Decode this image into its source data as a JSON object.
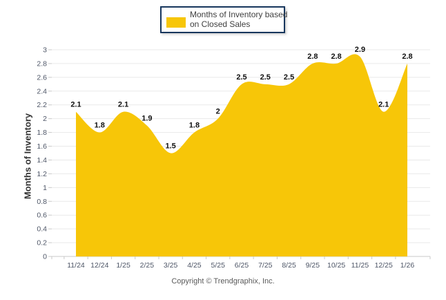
{
  "legend": {
    "lines": [
      "Months of Inventory based",
      "on Closed Sales"
    ],
    "swatch_color": "#F7C608",
    "border_color": "#17365D"
  },
  "y_axis": {
    "title": "Months of Inventory"
  },
  "footer": {
    "copyright": "Copyright © Trendgraphix, Inc."
  },
  "chart_data": {
    "type": "area",
    "title": "",
    "xlabel": "",
    "ylabel": "Months of Inventory",
    "categories": [
      "11/24",
      "12/24",
      "1/25",
      "2/25",
      "3/25",
      "4/25",
      "5/25",
      "6/25",
      "7/25",
      "8/25",
      "9/25",
      "10/25",
      "11/25",
      "12/25",
      "1/26"
    ],
    "series": [
      {
        "name": "Months of Inventory based on Closed Sales",
        "values": [
          2.1,
          1.8,
          2.1,
          1.9,
          1.5,
          1.8,
          2.0,
          2.5,
          2.5,
          2.5,
          2.8,
          2.8,
          2.9,
          2.1,
          2.8
        ],
        "labels": [
          "2.1",
          "1.8",
          "2.1",
          "1.9",
          "1.5",
          "1.8",
          "2",
          "2.5",
          "2.5",
          "2.5",
          "2.8",
          "2.8",
          "2.9",
          "2.1",
          "2.8"
        ],
        "color": "#F7C608"
      }
    ],
    "ylim": [
      0,
      3
    ],
    "ytick_step": 0.2,
    "ytick_labels": [
      "0",
      "0.2",
      "0.4",
      "0.6",
      "0.8",
      "1",
      "1.2",
      "1.4",
      "1.6",
      "1.8",
      "2",
      "2.2",
      "2.4",
      "2.6",
      "2.8",
      "3"
    ],
    "grid": "horizontal",
    "legend_position": "top-center",
    "colors": {
      "area_fill": "#F7C608",
      "gridline": "#e9e9e9",
      "axis_line": "#c8c8c8",
      "tick_label": "#4d5566",
      "data_label": "#111111"
    }
  }
}
